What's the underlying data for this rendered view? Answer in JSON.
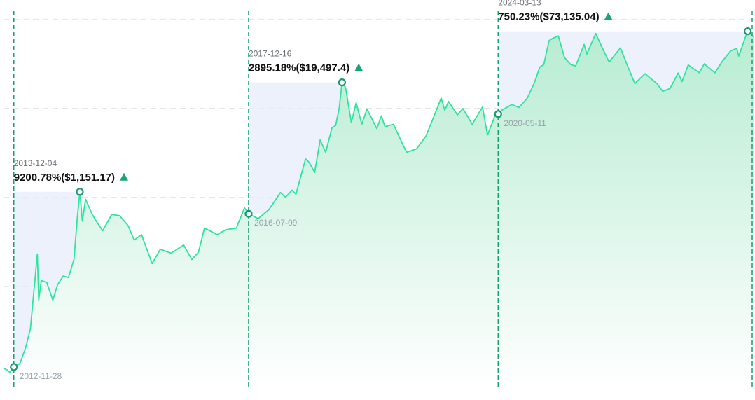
{
  "chart_data": {
    "type": "area",
    "title": "",
    "xlabel": "",
    "ylabel": "",
    "scale": "log",
    "grid": true,
    "x_range": [
      "2012-10-01",
      "2024-04-15"
    ],
    "y_range_usd": [
      8,
      150000
    ],
    "colors": {
      "line": "#2fe3a0",
      "fill_top": "#b7ecd2",
      "fill_bottom": "#ffffff",
      "marker": "#1a9a72",
      "halving_line": "#16a06e",
      "band": "#e6ecfb",
      "arrow": "#1aa377",
      "grid": "#e6e6e6"
    },
    "halvings": [
      "2012-11-28",
      "2016-07-09",
      "2020-05-11",
      "2024-04-19"
    ],
    "cycles": [
      {
        "low_date": "2012-11-28",
        "low_price": 12.38,
        "peak_date": "2013-12-04",
        "peak_price": 1151.17,
        "gain_text": "9200.78%($1,151.17)"
      },
      {
        "low_date": "2016-07-09",
        "low_price": 651,
        "peak_date": "2017-12-16",
        "peak_price": 19497.4,
        "gain_text": "2895.18%($19,497.4)"
      },
      {
        "low_date": "2020-05-11",
        "low_price": 8600,
        "peak_date": "2024-03-13",
        "peak_price": 73135.04,
        "gain_text": "750.23%($73,135.04)"
      }
    ],
    "series": [
      {
        "points": [
          [
            "2012-10-01",
            12.0
          ],
          [
            "2012-10-20",
            11.5
          ],
          [
            "2012-11-05",
            10.8
          ],
          [
            "2012-11-28",
            12.38
          ],
          [
            "2013-01-01",
            13.5
          ],
          [
            "2013-02-01",
            20.0
          ],
          [
            "2013-03-01",
            33.0
          ],
          [
            "2013-04-09",
            230.0
          ],
          [
            "2013-04-17",
            70.0
          ],
          [
            "2013-05-01",
            116.0
          ],
          [
            "2013-06-01",
            110.0
          ],
          [
            "2013-07-05",
            70.0
          ],
          [
            "2013-08-01",
            104.0
          ],
          [
            "2013-09-01",
            130.0
          ],
          [
            "2013-10-01",
            125.0
          ],
          [
            "2013-11-01",
            200.0
          ],
          [
            "2013-11-20",
            600.0
          ],
          [
            "2013-12-04",
            1151.17
          ],
          [
            "2013-12-18",
            540.0
          ],
          [
            "2014-01-05",
            950.0
          ],
          [
            "2014-02-10",
            650.0
          ],
          [
            "2014-03-01",
            560.0
          ],
          [
            "2014-04-11",
            420.0
          ],
          [
            "2014-06-01",
            640.0
          ],
          [
            "2014-07-15",
            620.0
          ],
          [
            "2014-09-01",
            480.0
          ],
          [
            "2014-10-05",
            330.0
          ],
          [
            "2014-11-15",
            380.0
          ],
          [
            "2015-01-14",
            180.0
          ],
          [
            "2015-03-01",
            260.0
          ],
          [
            "2015-05-01",
            235.0
          ],
          [
            "2015-07-10",
            290.0
          ],
          [
            "2015-08-25",
            200.0
          ],
          [
            "2015-10-01",
            240.0
          ],
          [
            "2015-11-04",
            450.0
          ],
          [
            "2016-01-15",
            380.0
          ],
          [
            "2016-03-01",
            430.0
          ],
          [
            "2016-05-01",
            450.0
          ],
          [
            "2016-06-16",
            760.0
          ],
          [
            "2016-07-09",
            651.0
          ],
          [
            "2016-09-01",
            575.0
          ],
          [
            "2016-11-01",
            730.0
          ],
          [
            "2017-01-04",
            1130.0
          ],
          [
            "2017-02-01",
            1000.0
          ],
          [
            "2017-03-10",
            1200.0
          ],
          [
            "2017-04-01",
            1080.0
          ],
          [
            "2017-05-25",
            2700.0
          ],
          [
            "2017-06-15",
            2450.0
          ],
          [
            "2017-07-15",
            1900.0
          ],
          [
            "2017-08-15",
            4400.0
          ],
          [
            "2017-09-15",
            3200.0
          ],
          [
            "2017-10-20",
            6000.0
          ],
          [
            "2017-11-10",
            6400.0
          ],
          [
            "2017-11-30",
            10000.0
          ],
          [
            "2017-12-16",
            19497.4
          ],
          [
            "2018-01-05",
            17000.0
          ],
          [
            "2018-02-06",
            6900.0
          ],
          [
            "2018-03-05",
            11500.0
          ],
          [
            "2018-04-06",
            6600.0
          ],
          [
            "2018-05-05",
            9800.0
          ],
          [
            "2018-06-29",
            5900.0
          ],
          [
            "2018-07-25",
            8200.0
          ],
          [
            "2018-08-14",
            6200.0
          ],
          [
            "2018-10-01",
            6600.0
          ],
          [
            "2018-11-25",
            3800.0
          ],
          [
            "2018-12-15",
            3200.0
          ],
          [
            "2019-02-08",
            3500.0
          ],
          [
            "2019-04-02",
            4900.0
          ],
          [
            "2019-05-14",
            7900.0
          ],
          [
            "2019-06-26",
            13000.0
          ],
          [
            "2019-07-16",
            9500.0
          ],
          [
            "2019-08-06",
            11900.0
          ],
          [
            "2019-09-25",
            8400.0
          ],
          [
            "2019-10-26",
            9900.0
          ],
          [
            "2019-12-17",
            6600.0
          ],
          [
            "2020-02-13",
            10300.0
          ],
          [
            "2020-03-12",
            5000.0
          ],
          [
            "2020-04-29",
            8800.0
          ],
          [
            "2020-05-11",
            8600.0
          ],
          [
            "2020-06-01",
            9500.0
          ],
          [
            "2020-07-27",
            11000.0
          ],
          [
            "2020-09-05",
            10200.0
          ],
          [
            "2020-10-21",
            12900.0
          ],
          [
            "2020-11-30",
            19200.0
          ],
          [
            "2020-12-31",
            29000.0
          ],
          [
            "2021-01-22",
            30800.0
          ],
          [
            "2021-02-21",
            57500.0
          ],
          [
            "2021-03-13",
            61000.0
          ],
          [
            "2021-04-14",
            64800.0
          ],
          [
            "2021-05-19",
            37000.0
          ],
          [
            "2021-06-22",
            31000.0
          ],
          [
            "2021-07-20",
            29700.0
          ],
          [
            "2021-09-06",
            52000.0
          ],
          [
            "2021-09-21",
            40600.0
          ],
          [
            "2021-11-10",
            69000.0
          ],
          [
            "2021-12-15",
            48500.0
          ],
          [
            "2022-01-24",
            33000.0
          ],
          [
            "2022-03-29",
            47500.0
          ],
          [
            "2022-05-12",
            28500.0
          ],
          [
            "2022-06-18",
            18900.0
          ],
          [
            "2022-08-14",
            24400.0
          ],
          [
            "2022-10-21",
            18800.0
          ],
          [
            "2022-11-21",
            15500.0
          ],
          [
            "2023-01-01",
            16600.0
          ],
          [
            "2023-02-16",
            24800.0
          ],
          [
            "2023-03-10",
            19900.0
          ],
          [
            "2023-04-14",
            30600.0
          ],
          [
            "2023-06-15",
            25000.0
          ],
          [
            "2023-07-13",
            31500.0
          ],
          [
            "2023-09-11",
            25000.0
          ],
          [
            "2023-10-24",
            34000.0
          ],
          [
            "2023-12-08",
            44000.0
          ],
          [
            "2024-01-11",
            47000.0
          ],
          [
            "2024-01-23",
            38500.0
          ],
          [
            "2024-02-28",
            62000.0
          ],
          [
            "2024-03-13",
            73135.04
          ],
          [
            "2024-04-15",
            63500.0
          ]
        ]
      }
    ]
  }
}
